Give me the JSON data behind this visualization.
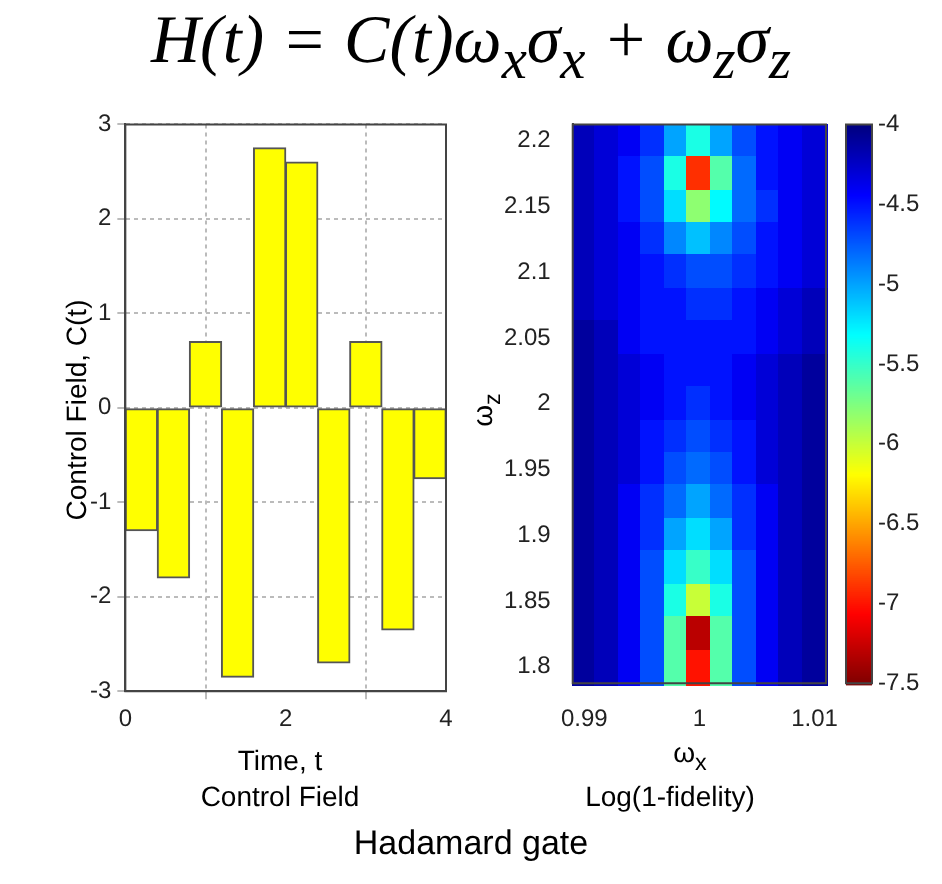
{
  "chart_data": [
    {
      "type": "bar",
      "title": "H(t) = C(t)ω$_{x}$σ$_{x}$ + ω$_{z}$σ$_{z}$",
      "xlabel": "Time, t",
      "ylabel": "Control Field, C(t)",
      "annotations": [
        "Control Field",
        "Hadamard gate"
      ],
      "x": [
        0.2,
        0.6,
        1.0,
        1.4,
        1.8,
        2.2,
        2.6,
        3.0,
        3.4,
        3.8
      ],
      "values": [
        -1.3,
        -1.8,
        0.7,
        -2.85,
        2.75,
        2.6,
        -2.7,
        0.7,
        -2.35,
        -0.75
      ],
      "color": "#ffff00",
      "xlim": [
        0,
        4
      ],
      "xticks": [
        0,
        2,
        4
      ],
      "ylim": [
        -3,
        3
      ],
      "yticks": [
        -3,
        -2,
        -1,
        0,
        1,
        2,
        3
      ],
      "grid": true,
      "legend": false
    },
    {
      "type": "heatmap",
      "xlabel": "ω$_{x}$",
      "ylabel": "ω$_{z}$",
      "annotations": [
        "Log(1-fidelity)"
      ],
      "categories": [
        "0.99",
        null,
        null,
        null,
        null,
        "1",
        null,
        null,
        null,
        null,
        "1.01"
      ],
      "y_categories": [
        "2.2",
        null,
        "2.15",
        null,
        "2.1",
        null,
        "2.05",
        null,
        "2",
        null,
        "1.95",
        null,
        "1.9",
        null,
        "1.85",
        null,
        "1.8"
      ],
      "cells": [
        [
          -4.2,
          -4.3,
          -4.4,
          -4.6,
          -5.0,
          -5.4,
          -5.0,
          -4.7,
          -4.5,
          -4.4,
          -4.3
        ],
        [
          -4.2,
          -4.3,
          -4.5,
          -4.7,
          -5.4,
          -6.9,
          -5.6,
          -4.8,
          -4.5,
          -4.4,
          -4.3
        ],
        [
          -4.2,
          -4.3,
          -4.5,
          -4.7,
          -5.2,
          -5.8,
          -5.3,
          -4.8,
          -4.6,
          -4.4,
          -4.3
        ],
        [
          -4.2,
          -4.3,
          -4.4,
          -4.6,
          -4.9,
          -5.1,
          -4.9,
          -4.7,
          -4.5,
          -4.4,
          -4.3
        ],
        [
          -4.2,
          -4.3,
          -4.4,
          -4.5,
          -4.6,
          -4.7,
          -4.7,
          -4.6,
          -4.5,
          -4.4,
          -4.3
        ],
        [
          -4.2,
          -4.3,
          -4.4,
          -4.5,
          -4.5,
          -4.6,
          -4.6,
          -4.5,
          -4.4,
          -4.3,
          -4.2
        ],
        [
          -4.1,
          -4.2,
          -4.4,
          -4.5,
          -4.5,
          -4.5,
          -4.5,
          -4.5,
          -4.4,
          -4.3,
          -4.2
        ],
        [
          -4.1,
          -4.2,
          -4.3,
          -4.4,
          -4.5,
          -4.5,
          -4.5,
          -4.4,
          -4.3,
          -4.2,
          -4.1
        ],
        [
          -4.1,
          -4.2,
          -4.3,
          -4.4,
          -4.5,
          -4.6,
          -4.5,
          -4.4,
          -4.3,
          -4.2,
          -4.1
        ],
        [
          -4.1,
          -4.2,
          -4.3,
          -4.5,
          -4.6,
          -4.7,
          -4.6,
          -4.5,
          -4.3,
          -4.2,
          -4.1
        ],
        [
          -4.1,
          -4.2,
          -4.3,
          -4.5,
          -4.7,
          -4.8,
          -4.7,
          -4.5,
          -4.3,
          -4.2,
          -4.1
        ],
        [
          -4.1,
          -4.2,
          -4.4,
          -4.6,
          -4.8,
          -5.0,
          -4.8,
          -4.6,
          -4.4,
          -4.2,
          -4.1
        ],
        [
          -4.1,
          -4.2,
          -4.4,
          -4.6,
          -5.0,
          -5.2,
          -5.0,
          -4.6,
          -4.4,
          -4.2,
          -4.1
        ],
        [
          -4.1,
          -4.2,
          -4.4,
          -4.7,
          -5.2,
          -5.5,
          -5.2,
          -4.7,
          -4.4,
          -4.2,
          -4.1
        ],
        [
          -4.1,
          -4.2,
          -4.4,
          -4.7,
          -5.4,
          -6.0,
          -5.4,
          -4.7,
          -4.4,
          -4.2,
          -4.1
        ],
        [
          -4.1,
          -4.2,
          -4.4,
          -4.7,
          -5.6,
          -7.3,
          -5.6,
          -4.7,
          -4.4,
          -4.2,
          -4.1
        ],
        [
          -4.1,
          -4.2,
          -4.4,
          -4.7,
          -5.6,
          -7.0,
          -5.6,
          -4.7,
          -4.4,
          -4.2,
          -4.1
        ]
      ],
      "clim": [
        -7.5,
        -4
      ],
      "cticks": [
        -7.5,
        -7,
        -6.5,
        -6,
        -5.5,
        -5,
        -4.5,
        -4
      ]
    }
  ]
}
